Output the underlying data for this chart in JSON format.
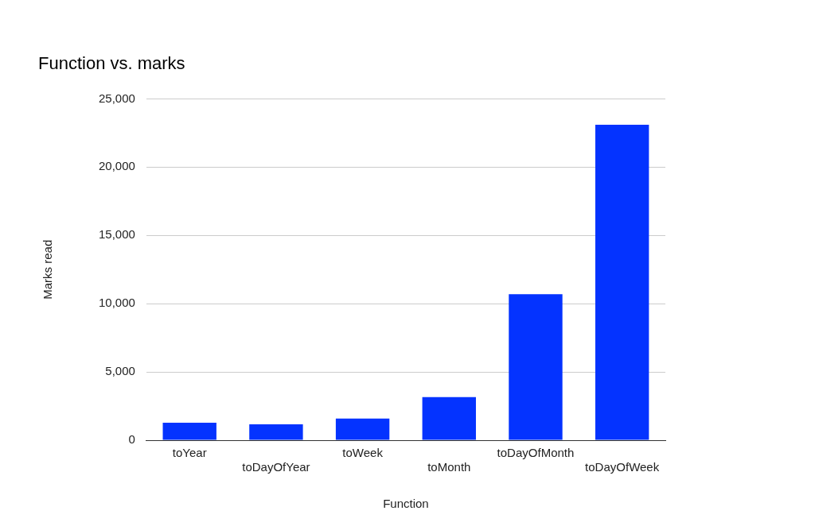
{
  "chart_data": {
    "type": "bar",
    "title": "Function vs. marks",
    "xlabel": "Function",
    "ylabel": "Marks read",
    "categories": [
      "toYear",
      "toDayOfYear",
      "toWeek",
      "toMonth",
      "toDayOfMonth",
      "toDayOfWeek"
    ],
    "values": [
      1280,
      1160,
      1580,
      3160,
      10700,
      23100
    ],
    "color": "#0433ff",
    "ylim": [
      0,
      25000
    ],
    "yticks": [
      {
        "value": 0,
        "label": "0"
      },
      {
        "value": 5000,
        "label": "5,000"
      },
      {
        "value": 10000,
        "label": "10,000"
      },
      {
        "value": 15000,
        "label": "15,000"
      },
      {
        "value": 20000,
        "label": "20,000"
      },
      {
        "value": 25000,
        "label": "25,000"
      }
    ],
    "grid": "y"
  }
}
